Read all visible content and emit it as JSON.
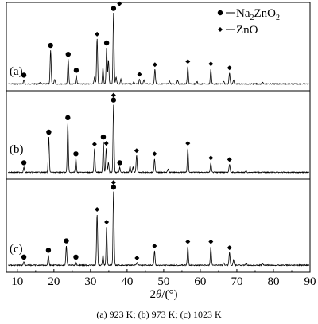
{
  "chart_data": {
    "type": "line",
    "title": "",
    "xlabel_prefix": "2θ/(",
    "xlabel_unit": "°",
    "xlabel_suffix": ")",
    "ylabel": "",
    "xlim": [
      7,
      90
    ],
    "x_ticks": [
      10,
      20,
      30,
      40,
      50,
      60,
      70,
      80,
      90
    ],
    "caption": "(a) 923 K; (b) 973 K; (c) 1023 K",
    "legend": {
      "placement": "top-right",
      "entries": [
        {
          "marker": "circle",
          "label_main": "Na",
          "sub1": "2",
          "mid": "ZnO",
          "sub2": "2"
        },
        {
          "marker": "diamond",
          "label_main": "ZnO"
        }
      ]
    },
    "panels": [
      {
        "label": "(a)",
        "baseline_rel": 0.05,
        "peaks": [
          {
            "x": 11.8,
            "h": 0.05,
            "m": "circle"
          },
          {
            "x": 16.2,
            "h": 0.02
          },
          {
            "x": 19.1,
            "h": 0.42,
            "m": "circle"
          },
          {
            "x": 20.2,
            "h": 0.06
          },
          {
            "x": 23.9,
            "h": 0.31,
            "m": "circle"
          },
          {
            "x": 26.1,
            "h": 0.11,
            "m": "circle"
          },
          {
            "x": 31.1,
            "h": 0.09
          },
          {
            "x": 31.8,
            "h": 0.56,
            "m": "diamond"
          },
          {
            "x": 33.4,
            "h": 0.2
          },
          {
            "x": 34.4,
            "h": 0.45,
            "m": "circle"
          },
          {
            "x": 34.9,
            "h": 0.3
          },
          {
            "x": 36.3,
            "h": 0.88,
            "m": "circle"
          },
          {
            "x": 37.0,
            "h": 0.08
          },
          {
            "x": 38.3,
            "h": 0.06
          },
          {
            "x": 41.8,
            "h": 0.03
          },
          {
            "x": 43.4,
            "h": 0.06,
            "m": "diamond"
          },
          {
            "x": 44.6,
            "h": 0.05
          },
          {
            "x": 47.6,
            "h": 0.18,
            "m": "diamond"
          },
          {
            "x": 51.6,
            "h": 0.04
          },
          {
            "x": 53.8,
            "h": 0.05
          },
          {
            "x": 56.6,
            "h": 0.22,
            "m": "diamond"
          },
          {
            "x": 59.1,
            "h": 0.03
          },
          {
            "x": 62.9,
            "h": 0.19,
            "m": "diamond"
          },
          {
            "x": 66.4,
            "h": 0.03
          },
          {
            "x": 68.0,
            "h": 0.14,
            "m": "diamond"
          },
          {
            "x": 69.1,
            "h": 0.05
          },
          {
            "x": 77.0,
            "h": 0.02
          }
        ],
        "extra_markers": [
          {
            "x": 37.9,
            "m": "diamond",
            "top": true
          }
        ]
      },
      {
        "label": "(b)",
        "baseline_rel": 0.05,
        "peaks": [
          {
            "x": 11.8,
            "h": 0.06,
            "m": "circle"
          },
          {
            "x": 18.6,
            "h": 0.44,
            "m": "circle"
          },
          {
            "x": 23.8,
            "h": 0.62,
            "m": "circle"
          },
          {
            "x": 26.0,
            "h": 0.17,
            "m": "circle"
          },
          {
            "x": 31.1,
            "h": 0.29,
            "m": "diamond"
          },
          {
            "x": 33.5,
            "h": 0.38,
            "m": "circle"
          },
          {
            "x": 34.3,
            "h": 0.3,
            "m": "diamond"
          },
          {
            "x": 34.9,
            "h": 0.12
          },
          {
            "x": 36.3,
            "h": 0.84,
            "m": "circle"
          },
          {
            "x": 38.0,
            "h": 0.06,
            "m": "circle"
          },
          {
            "x": 40.8,
            "h": 0.08
          },
          {
            "x": 41.6,
            "h": 0.07
          },
          {
            "x": 42.6,
            "h": 0.21,
            "m": "diamond"
          },
          {
            "x": 47.5,
            "h": 0.17,
            "m": "diamond"
          },
          {
            "x": 51.2,
            "h": 0.04
          },
          {
            "x": 56.6,
            "h": 0.3,
            "m": "diamond"
          },
          {
            "x": 62.9,
            "h": 0.12,
            "m": "diamond"
          },
          {
            "x": 68.0,
            "h": 0.1,
            "m": "diamond"
          },
          {
            "x": 72.5,
            "h": 0.02
          }
        ],
        "extra_markers": [
          {
            "x": 36.3,
            "m": "diamond",
            "top": true
          }
        ]
      },
      {
        "label": "(c)",
        "baseline_rel": 0.05,
        "peaks": [
          {
            "x": 11.8,
            "h": 0.04,
            "m": "circle"
          },
          {
            "x": 18.5,
            "h": 0.12,
            "m": "circle"
          },
          {
            "x": 23.4,
            "h": 0.23,
            "m": "circle"
          },
          {
            "x": 26.0,
            "h": 0.04,
            "m": "circle"
          },
          {
            "x": 31.8,
            "h": 0.6,
            "m": "diamond"
          },
          {
            "x": 33.4,
            "h": 0.12
          },
          {
            "x": 34.4,
            "h": 0.45,
            "m": "diamond"
          },
          {
            "x": 36.3,
            "h": 0.86,
            "m": "circle"
          },
          {
            "x": 42.7,
            "h": 0.03,
            "m": "diamond"
          },
          {
            "x": 47.5,
            "h": 0.17,
            "m": "diamond"
          },
          {
            "x": 56.6,
            "h": 0.22,
            "m": "diamond"
          },
          {
            "x": 62.9,
            "h": 0.22,
            "m": "diamond"
          },
          {
            "x": 66.4,
            "h": 0.03
          },
          {
            "x": 68.0,
            "h": 0.15,
            "m": "diamond"
          },
          {
            "x": 69.1,
            "h": 0.06
          },
          {
            "x": 72.6,
            "h": 0.02
          },
          {
            "x": 77.0,
            "h": 0.02
          }
        ],
        "extra_markers": [
          {
            "x": 36.3,
            "m": "diamond",
            "top": true
          }
        ]
      }
    ]
  }
}
